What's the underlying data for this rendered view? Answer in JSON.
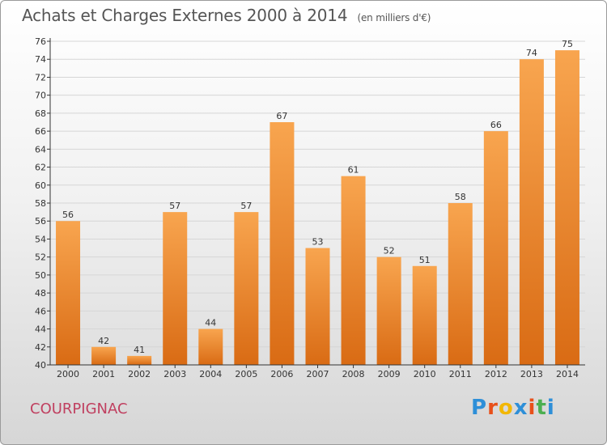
{
  "header": {
    "title": "Achats et Charges Externes 2000 à 2014",
    "subtitle": "(en milliers d'€)"
  },
  "footer": {
    "town": "COURPIGNAC",
    "logo": "Proxiti",
    "logo_colors": [
      "#2e8fd8",
      "#e8501a",
      "#f2b705",
      "#2e8fd8",
      "#e8501a",
      "#4caf50",
      "#2e8fd8"
    ]
  },
  "colors": {
    "bar_top": "#f8a54f",
    "bar_bottom": "#d96b14",
    "axis": "#333333",
    "grid": "#d6d6d6",
    "text": "#333333"
  },
  "chart_data": {
    "type": "bar",
    "title": "Achats et Charges Externes 2000 à 2014",
    "subtitle": "(en milliers d'€)",
    "categories": [
      "2000",
      "2001",
      "2002",
      "2003",
      "2004",
      "2005",
      "2006",
      "2007",
      "2008",
      "2009",
      "2010",
      "2011",
      "2012",
      "2013",
      "2014"
    ],
    "values": [
      56,
      42,
      41,
      57,
      44,
      57,
      67,
      53,
      61,
      52,
      51,
      58,
      66,
      74,
      75
    ],
    "ylim": [
      40,
      76
    ],
    "yticks": [
      40,
      42,
      44,
      46,
      48,
      50,
      52,
      54,
      56,
      58,
      60,
      62,
      64,
      66,
      68,
      70,
      72,
      74,
      76
    ],
    "grid": "horizontal",
    "data_labels": true
  }
}
